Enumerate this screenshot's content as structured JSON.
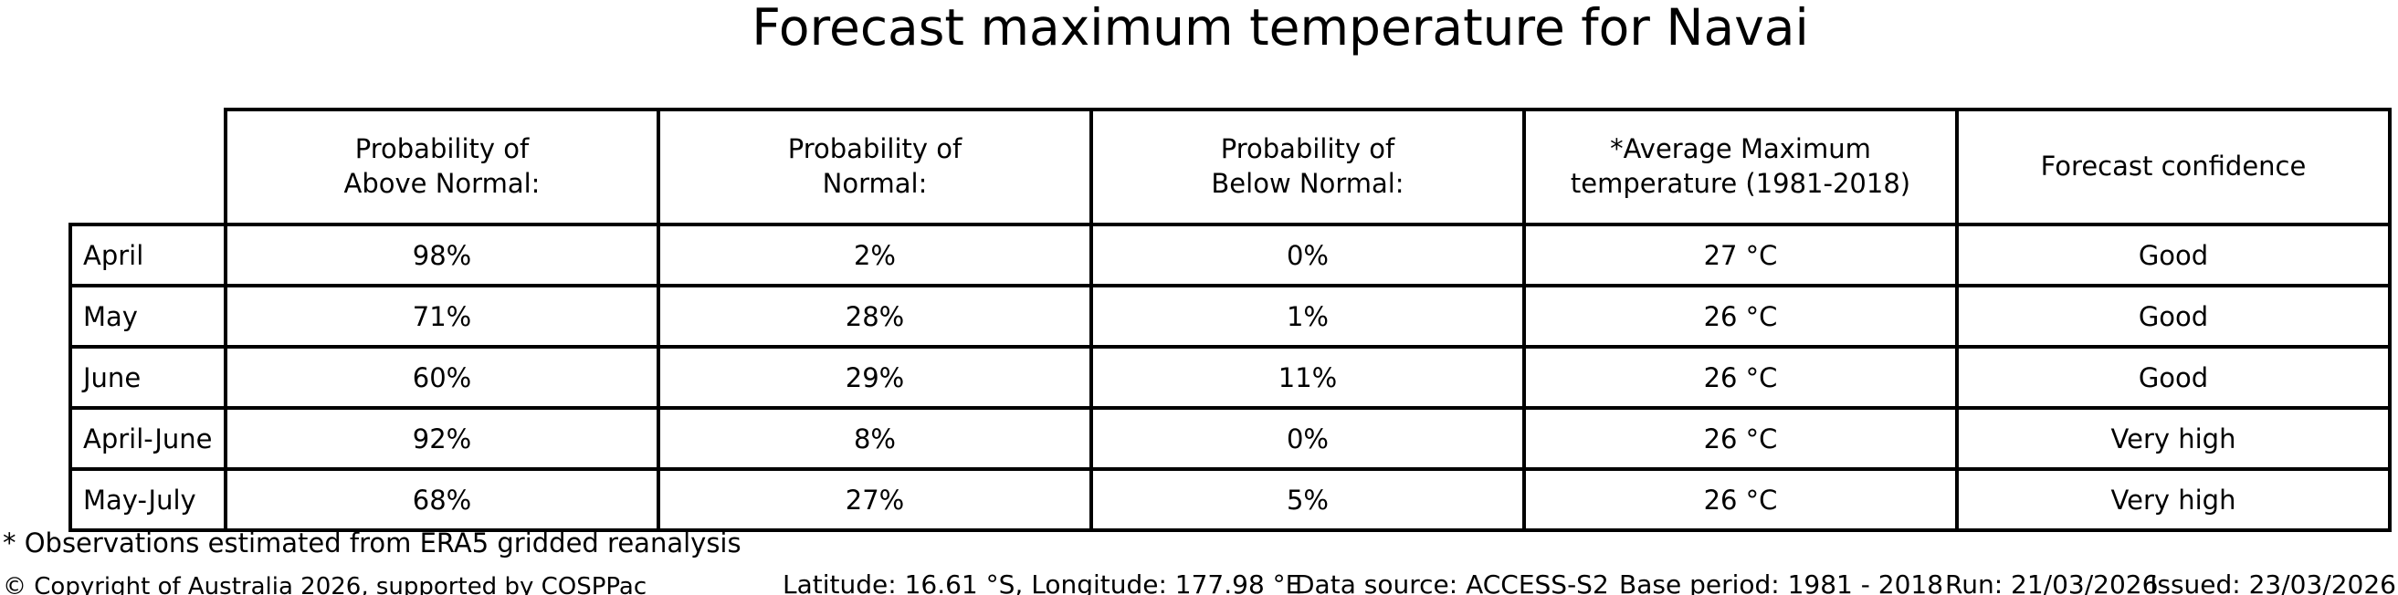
{
  "title": "Forecast maximum temperature for Navai",
  "chart_data": {
    "type": "table",
    "title": "Forecast maximum temperature for Navai",
    "categories": [
      "April",
      "May",
      "June",
      "April-June",
      "May-July"
    ],
    "series": [
      {
        "name": "Probability of Above Normal:",
        "values": [
          "98%",
          "71%",
          "60%",
          "92%",
          "68%"
        ]
      },
      {
        "name": "Probability of Normal:",
        "values": [
          "2%",
          "28%",
          "29%",
          "8%",
          "27%"
        ]
      },
      {
        "name": "Probability of Below Normal:",
        "values": [
          "0%",
          "1%",
          "11%",
          "0%",
          "5%"
        ]
      },
      {
        "name": "*Average Maximum temperature (1981-2018)",
        "values": [
          "27 °C",
          "26 °C",
          "26 °C",
          "26 °C",
          "26 °C"
        ]
      },
      {
        "name": "Forecast confidence",
        "values": [
          "Good",
          "Good",
          "Good",
          "Very high",
          "Very high"
        ]
      }
    ]
  },
  "table": {
    "columns": [
      "Probability of\nAbove Normal:",
      "Probability of\nNormal:",
      "Probability of\nBelow Normal:",
      "*Average Maximum\ntemperature (1981-2018)",
      "Forecast confidence"
    ]
  },
  "footnote": "* Observations estimated from ERA5 gridded reanalysis",
  "footer": {
    "copyright": "© Copyright of Australia 2026, supported by COSPPac",
    "location": "Latitude: 16.61 °S, Longitude: 177.98 °E",
    "data_source": "Data source: ACCESS-S2",
    "base_period": "Base period: 1981 - 2018",
    "run": "Run: 21/03/2026",
    "issued": "Issued: 23/03/2026"
  },
  "colors": {
    "background": "#ffffff",
    "text": "#000000",
    "table_border": "#000000"
  }
}
